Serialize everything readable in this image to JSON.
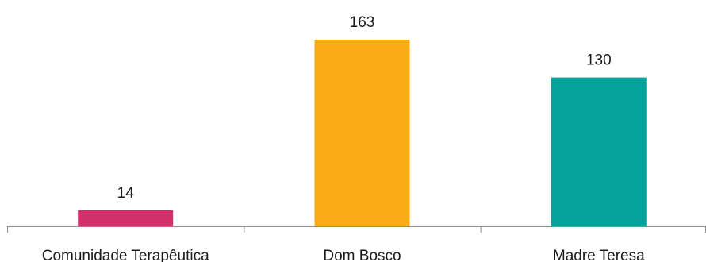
{
  "chart_data": {
    "type": "bar",
    "title": "",
    "xlabel": "",
    "ylabel": "",
    "categories": [
      "Comunidade Terapêutica",
      "Dom Bosco",
      "Madre Teresa"
    ],
    "values": [
      14,
      163,
      130
    ],
    "data_labels": [
      "14",
      "163",
      "130"
    ],
    "colors": [
      "#d1306a",
      "#fbab18",
      "#04a29b"
    ],
    "ylim": [
      0,
      163
    ],
    "grid": false,
    "legend": "none"
  },
  "colors": {
    "axis": "#8c8c8c",
    "text": "#1a1a1a"
  }
}
